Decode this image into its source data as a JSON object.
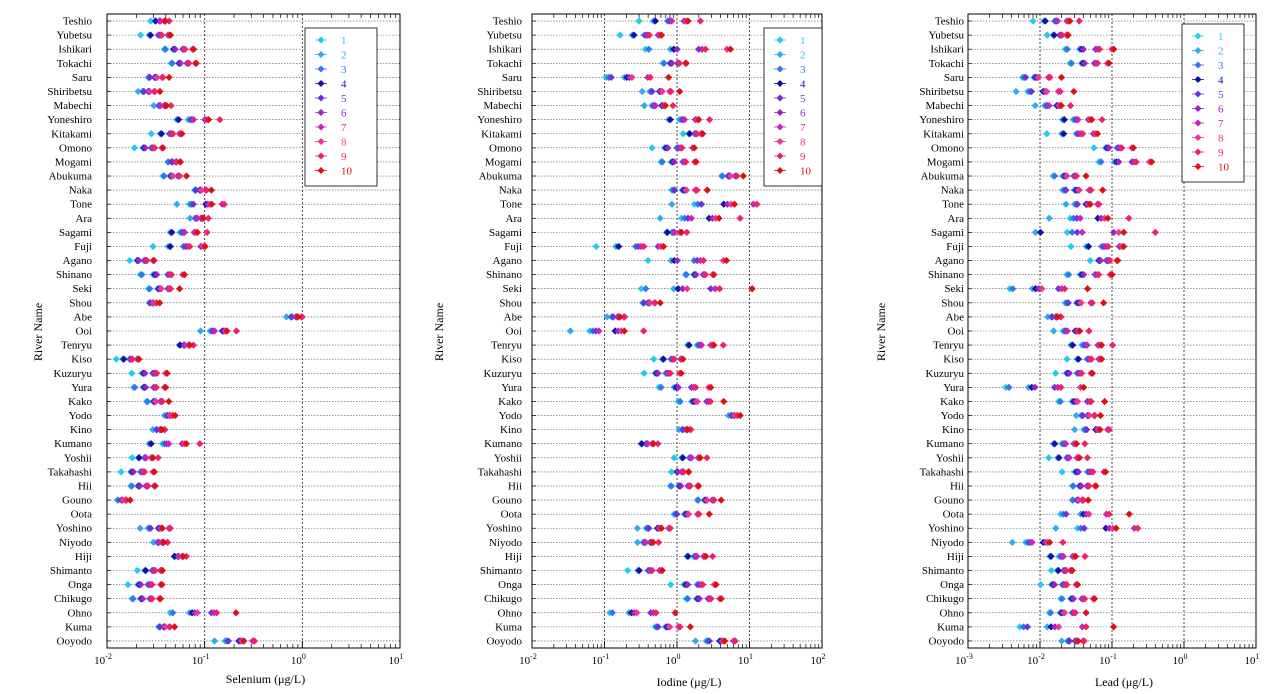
{
  "rivers": [
    "Teshio",
    "Yubetsu",
    "Ishikari",
    "Tokachi",
    "Saru",
    "Shiribetsu",
    "Mabechi",
    "Yoneshiro",
    "Kitakami",
    "Omono",
    "Mogami",
    "Abukuma",
    "Naka",
    "Tone",
    "Ara",
    "Sagami",
    "Fuji",
    "Agano",
    "Shinano",
    "Seki",
    "Shou",
    "Abe",
    "Ooi",
    "Tenryu",
    "Kiso",
    "Kuzuryu",
    "Yura",
    "Kako",
    "Yodo",
    "Kino",
    "Kumano",
    "Yoshii",
    "Takahashi",
    "Hii",
    "Gouno",
    "Oota",
    "Yoshino",
    "Niyodo",
    "Hiji",
    "Shimanto",
    "Onga",
    "Chikugo",
    "Ohno",
    "Kuma",
    "Ooyodo"
  ],
  "y_axis_title": "River Name",
  "legend_labels": [
    "1",
    "2",
    "3",
    "4",
    "5",
    "6",
    "7",
    "8",
    "9",
    "10"
  ],
  "colors": [
    "#22ccee",
    "#33aaee",
    "#3377ee",
    "#1111aa",
    "#6633dd",
    "#9922cc",
    "#cc22bb",
    "#ee3399",
    "#ee2266",
    "#dd1111"
  ],
  "chart_data": [
    {
      "type": "scatter",
      "xlabel": "Selenium (μg/L)",
      "x_scale": "log",
      "xlim": [
        0.01,
        10
      ],
      "x_ticks": [
        "10^-2",
        "10^-1",
        "10^0",
        "10^1"
      ],
      "legend_position": "top-right",
      "grid": "vertical dotted at decades, horizontal dotted per river",
      "series_ranges": [
        [
          0.028,
          0.045
        ],
        [
          0.021,
          0.055
        ],
        [
          0.035,
          0.09
        ],
        [
          0.04,
          0.09
        ],
        [
          0.023,
          0.045
        ],
        [
          0.02,
          0.035
        ],
        [
          0.028,
          0.05
        ],
        [
          0.04,
          0.17
        ],
        [
          0.028,
          0.075
        ],
        [
          0.018,
          0.045
        ],
        [
          0.04,
          0.06
        ],
        [
          0.033,
          0.07
        ],
        [
          0.07,
          0.12
        ],
        [
          0.045,
          0.22
        ],
        [
          0.065,
          0.12
        ],
        [
          0.035,
          0.12
        ],
        [
          0.028,
          0.15
        ],
        [
          0.016,
          0.035
        ],
        [
          0.018,
          0.075
        ],
        [
          0.022,
          0.06
        ],
        [
          0.025,
          0.035
        ],
        [
          0.65,
          1.1
        ],
        [
          0.075,
          0.25
        ],
        [
          0.05,
          0.08
        ],
        [
          0.012,
          0.025
        ],
        [
          0.016,
          0.05
        ],
        [
          0.016,
          0.045
        ],
        [
          0.022,
          0.045
        ],
        [
          0.038,
          0.05
        ],
        [
          0.028,
          0.042
        ],
        [
          0.02,
          0.11
        ],
        [
          0.018,
          0.035
        ],
        [
          0.013,
          0.038
        ],
        [
          0.016,
          0.035
        ],
        [
          0.012,
          0.018
        ],
        null,
        [
          0.02,
          0.055
        ],
        [
          0.028,
          0.045
        ],
        [
          0.045,
          0.068
        ],
        [
          0.02,
          0.045
        ],
        [
          0.015,
          0.045
        ],
        [
          0.016,
          0.04
        ],
        [
          0.03,
          0.25
        ],
        [
          0.03,
          0.05
        ],
        [
          0.11,
          0.42
        ]
      ]
    },
    {
      "type": "scatter",
      "xlabel": "Iodine (μg/L)",
      "x_scale": "log",
      "xlim": [
        0.01,
        100
      ],
      "x_ticks": [
        "10^-2",
        "10^-1",
        "10^0",
        "10^1",
        "10^2"
      ],
      "legend_position": "top-right",
      "grid": "vertical dotted at decades, horizontal dotted per river",
      "series_ranges": [
        [
          0.3,
          2.5
        ],
        [
          0.15,
          0.9
        ],
        [
          0.25,
          10
        ],
        [
          0.55,
          1.5
        ],
        [
          0.06,
          0.9
        ],
        [
          0.3,
          1.1
        ],
        [
          0.3,
          1.1
        ],
        [
          0.55,
          3.5
        ],
        [
          1.2,
          2.8
        ],
        [
          0.4,
          2.5
        ],
        [
          0.5,
          2.3
        ],
        [
          3.5,
          9
        ],
        [
          0.6,
          2.8
        ],
        [
          0.6,
          28
        ],
        [
          0.35,
          13
        ],
        [
          0.6,
          1.5
        ],
        [
          0.07,
          1.3
        ],
        [
          0.3,
          9
        ],
        [
          1.1,
          3.8
        ],
        [
          0.13,
          16
        ],
        [
          0.28,
          0.6
        ],
        [
          0.1,
          0.22
        ],
        [
          0.02,
          0.55
        ],
        [
          1.0,
          5
        ],
        [
          0.45,
          1.6
        ],
        [
          0.3,
          1.5
        ],
        [
          0.4,
          3.8
        ],
        [
          0.7,
          5
        ],
        [
          5,
          7.5
        ],
        [
          1.0,
          1.7
        ],
        [
          0.28,
          0.6
        ],
        [
          0.9,
          2.8
        ],
        [
          0.8,
          1.7
        ],
        [
          0.7,
          2.4
        ],
        [
          1.6,
          4.5
        ],
        [
          0.65,
          3
        ],
        [
          0.25,
          1.1
        ],
        [
          0.25,
          0.65
        ],
        [
          1.1,
          3.5
        ],
        [
          0.2,
          0.9
        ],
        [
          0.7,
          5
        ],
        [
          1.1,
          5
        ],
        [
          0.07,
          1.2
        ],
        [
          0.35,
          1.6
        ],
        [
          1.5,
          9
        ]
      ]
    },
    {
      "type": "scatter",
      "xlabel": "Lead (μg/L)",
      "x_scale": "log",
      "xlim": [
        0.001,
        10
      ],
      "x_ticks": [
        "10^-3",
        "10^-2",
        "10^-1",
        "10^0",
        "10^1"
      ],
      "legend_position": "top-right",
      "grid": "vertical dotted at decades, horizontal dotted per river",
      "series_ranges": [
        [
          0.008,
          0.04
        ],
        [
          0.012,
          0.03
        ],
        [
          0.018,
          0.15
        ],
        [
          0.02,
          0.11
        ],
        [
          0.004,
          0.022
        ],
        [
          0.004,
          0.03
        ],
        [
          0.007,
          0.035
        ],
        [
          0.015,
          0.09
        ],
        [
          0.012,
          0.11
        ],
        [
          0.05,
          0.28
        ],
        [
          0.05,
          0.5
        ],
        [
          0.012,
          0.05
        ],
        [
          0.014,
          0.08
        ],
        [
          0.02,
          0.09
        ],
        [
          0.008,
          0.3
        ],
        [
          0.003,
          0.7
        ],
        [
          0.025,
          0.25
        ],
        [
          0.045,
          0.15
        ],
        [
          0.018,
          0.13
        ],
        [
          0.002,
          0.06
        ],
        [
          0.015,
          0.08
        ],
        [
          0.012,
          0.022
        ],
        [
          0.012,
          0.06
        ],
        [
          0.018,
          0.12
        ],
        [
          0.022,
          0.1
        ],
        [
          0.014,
          0.07
        ],
        [
          0.002,
          0.06
        ],
        [
          0.012,
          0.09
        ],
        [
          0.03,
          0.07
        ],
        [
          0.025,
          0.12
        ],
        [
          0.012,
          0.05
        ],
        [
          0.013,
          0.05
        ],
        [
          0.018,
          0.12
        ],
        [
          0.025,
          0.07
        ],
        [
          0.025,
          0.05
        ],
        [
          0.01,
          0.2
        ],
        [
          0.012,
          0.5
        ],
        [
          0.003,
          0.03
        ],
        [
          0.01,
          0.05
        ],
        [
          0.014,
          0.035
        ],
        [
          0.009,
          0.045
        ],
        [
          0.016,
          0.07
        ],
        [
          0.01,
          0.05
        ],
        [
          0.002,
          0.12
        ],
        [
          0.018,
          0.05
        ]
      ]
    }
  ]
}
